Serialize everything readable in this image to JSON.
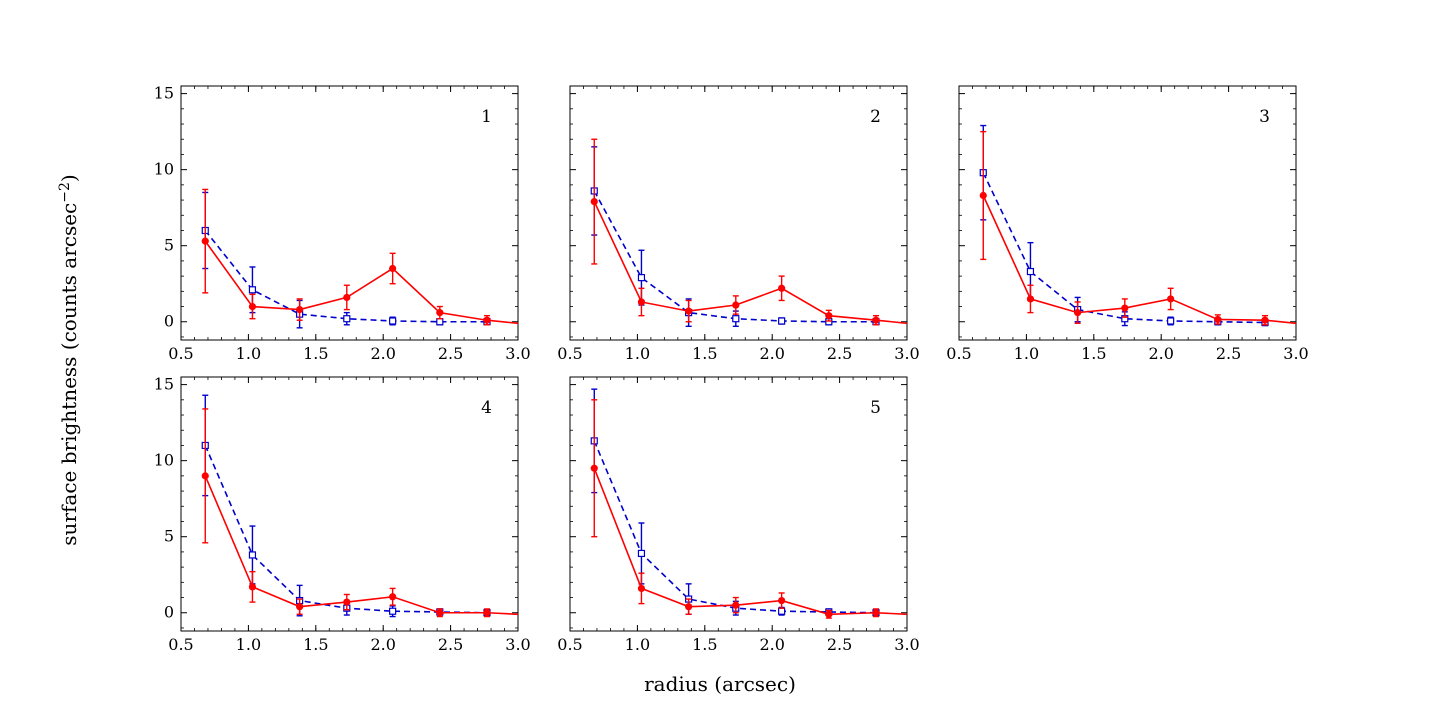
{
  "figure": {
    "ylabel": "surface brightness (counts arcsec",
    "ylabel_sup": "−2",
    "ylabel_close": ")",
    "xlabel": "radius (arcsec)"
  },
  "colors": {
    "series_red": "#ff0000",
    "series_blue": "#0000cc"
  },
  "chart_data": [
    {
      "type": "line",
      "panel": "1",
      "xlim": [
        0.5,
        3.0
      ],
      "ylim": [
        -1.2,
        15.5
      ],
      "x_ticks": [
        "0.5",
        "1.0",
        "1.5",
        "2.0",
        "2.5",
        "3.0"
      ],
      "y_ticks": [
        "0",
        "5",
        "10",
        "15"
      ],
      "series": [
        {
          "name": "red",
          "style": "solid, filled circles",
          "x": [
            0.68,
            1.03,
            1.38,
            1.73,
            2.07,
            2.42,
            2.77,
            3.0
          ],
          "y": [
            5.3,
            1.0,
            0.8,
            1.6,
            3.5,
            0.6,
            0.1,
            -0.1
          ],
          "err": [
            3.4,
            0.8,
            0.7,
            0.8,
            1.0,
            0.4,
            0.3,
            null
          ]
        },
        {
          "name": "blue",
          "style": "dashed, open squares",
          "x": [
            0.68,
            1.03,
            1.38,
            1.73,
            2.07,
            2.42,
            2.77
          ],
          "y": [
            6.0,
            2.1,
            0.5,
            0.2,
            0.05,
            0.0,
            0.0
          ],
          "err": [
            2.5,
            1.5,
            0.9,
            0.4,
            0.25,
            0.2,
            0.2
          ]
        }
      ]
    },
    {
      "type": "line",
      "panel": "2",
      "xlim": [
        0.5,
        3.0
      ],
      "ylim": [
        -1.2,
        15.5
      ],
      "x_ticks": [
        "0.5",
        "1.0",
        "1.5",
        "2.0",
        "2.5",
        "3.0"
      ],
      "y_ticks": [
        "0",
        "5",
        "10",
        "15"
      ],
      "series": [
        {
          "name": "red",
          "style": "solid, filled circles",
          "x": [
            0.68,
            1.03,
            1.38,
            1.73,
            2.07,
            2.42,
            2.77,
            3.0
          ],
          "y": [
            7.9,
            1.3,
            0.7,
            1.1,
            2.2,
            0.4,
            0.1,
            -0.1
          ],
          "err": [
            4.1,
            0.9,
            0.7,
            0.6,
            0.8,
            0.35,
            0.3,
            null
          ]
        },
        {
          "name": "blue",
          "style": "dashed, open squares",
          "x": [
            0.68,
            1.03,
            1.38,
            1.73,
            2.07,
            2.42,
            2.77
          ],
          "y": [
            8.6,
            2.9,
            0.6,
            0.2,
            0.05,
            0.0,
            0.0
          ],
          "err": [
            2.9,
            1.8,
            0.9,
            0.5,
            0.2,
            0.2,
            0.2
          ]
        }
      ]
    },
    {
      "type": "line",
      "panel": "3",
      "xlim": [
        0.5,
        3.0
      ],
      "ylim": [
        -1.2,
        15.5
      ],
      "x_ticks": [
        "0.5",
        "1.0",
        "1.5",
        "2.0",
        "2.5",
        "3.0"
      ],
      "y_ticks": [
        "0",
        "5",
        "10",
        "15"
      ],
      "series": [
        {
          "name": "red",
          "style": "solid, filled circles",
          "x": [
            0.68,
            1.03,
            1.38,
            1.73,
            2.07,
            2.42,
            2.77,
            3.0
          ],
          "y": [
            8.3,
            1.5,
            0.6,
            0.9,
            1.5,
            0.15,
            0.1,
            -0.1
          ],
          "err": [
            4.2,
            0.9,
            0.7,
            0.6,
            0.7,
            0.3,
            0.3,
            null
          ]
        },
        {
          "name": "blue",
          "style": "dashed, open squares",
          "x": [
            0.68,
            1.03,
            1.38,
            1.73,
            2.07,
            2.42,
            2.77
          ],
          "y": [
            9.8,
            3.3,
            0.8,
            0.2,
            0.05,
            0.0,
            -0.05
          ],
          "err": [
            3.1,
            1.9,
            0.8,
            0.45,
            0.25,
            0.2,
            0.2
          ]
        }
      ]
    },
    {
      "type": "line",
      "panel": "4",
      "xlim": [
        0.5,
        3.0
      ],
      "ylim": [
        -1.2,
        15.5
      ],
      "x_ticks": [
        "0.5",
        "1.0",
        "1.5",
        "2.0",
        "2.5",
        "3.0"
      ],
      "y_ticks": [
        "0",
        "5",
        "10",
        "15"
      ],
      "series": [
        {
          "name": "red",
          "style": "solid, filled circles",
          "x": [
            0.68,
            1.03,
            1.38,
            1.73,
            2.07,
            2.42,
            2.77,
            3.0
          ],
          "y": [
            9.0,
            1.7,
            0.4,
            0.7,
            1.05,
            0.0,
            0.0,
            -0.1
          ],
          "err": [
            4.4,
            1.0,
            0.5,
            0.5,
            0.55,
            0.25,
            0.25,
            null
          ]
        },
        {
          "name": "blue",
          "style": "dashed, open squares",
          "x": [
            0.68,
            1.03,
            1.38,
            1.73,
            2.07,
            2.42,
            2.77
          ],
          "y": [
            11.0,
            3.8,
            0.8,
            0.3,
            0.1,
            0.05,
            0.0
          ],
          "err": [
            3.3,
            1.9,
            1.0,
            0.45,
            0.35,
            0.2,
            0.2
          ]
        }
      ]
    },
    {
      "type": "line",
      "panel": "5",
      "xlim": [
        0.5,
        3.0
      ],
      "ylim": [
        -1.2,
        15.5
      ],
      "x_ticks": [
        "0.5",
        "1.0",
        "1.5",
        "2.0",
        "2.5",
        "3.0"
      ],
      "y_ticks": [
        "0",
        "5",
        "10",
        "15"
      ],
      "series": [
        {
          "name": "red",
          "style": "solid, filled circles",
          "x": [
            0.68,
            1.03,
            1.38,
            1.73,
            2.07,
            2.42,
            2.77,
            3.0
          ],
          "y": [
            9.5,
            1.6,
            0.4,
            0.5,
            0.8,
            -0.1,
            0.0,
            -0.1
          ],
          "err": [
            4.5,
            1.0,
            0.5,
            0.5,
            0.5,
            0.25,
            0.25,
            null
          ]
        },
        {
          "name": "blue",
          "style": "dashed, open squares",
          "x": [
            0.68,
            1.03,
            1.38,
            1.73,
            2.07,
            2.42,
            2.77
          ],
          "y": [
            11.3,
            3.9,
            0.9,
            0.3,
            0.1,
            0.05,
            0.0
          ],
          "err": [
            3.4,
            2.0,
            1.0,
            0.45,
            0.25,
            0.2,
            0.2
          ]
        }
      ]
    }
  ]
}
